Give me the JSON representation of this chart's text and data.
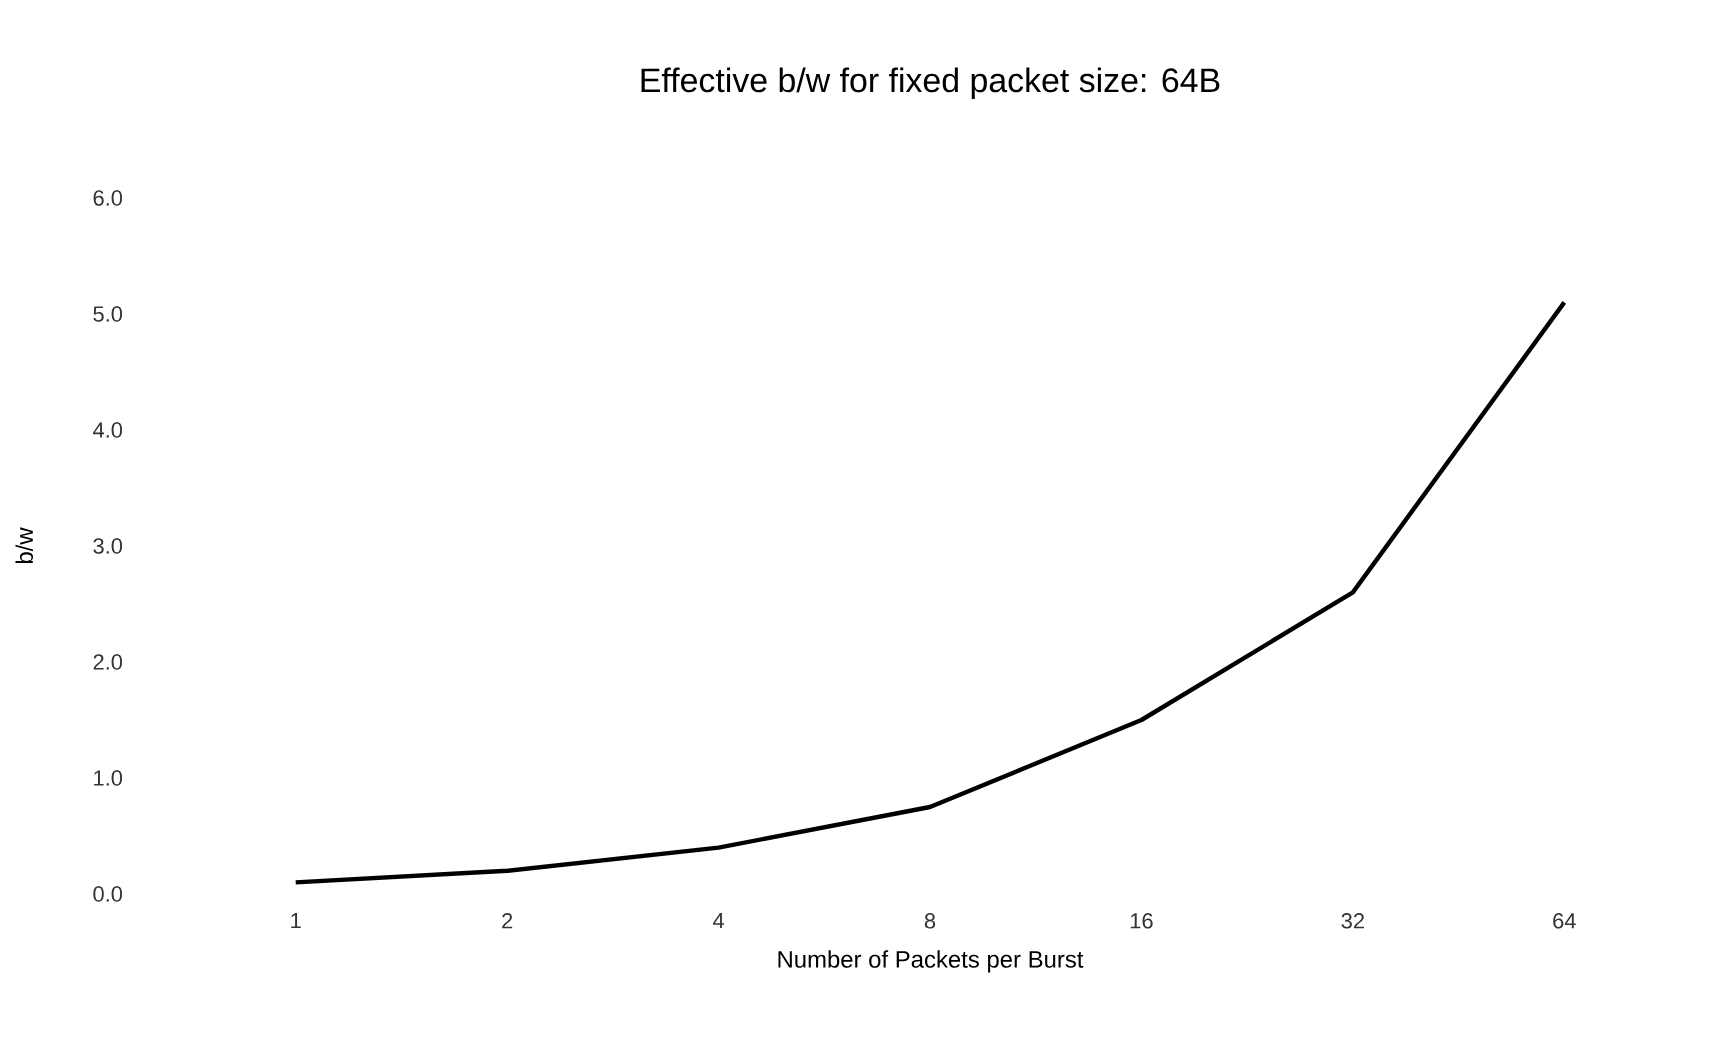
{
  "chart_data": {
    "type": "line",
    "title": "Effective b/w for fixed packet size: 64B",
    "xlabel": "Number of Packets per Burst",
    "ylabel": "b/w",
    "categories": [
      "1",
      "2",
      "4",
      "8",
      "16",
      "32",
      "64"
    ],
    "series": [
      {
        "color": "#000000",
        "values": [
          0.1,
          0.2,
          0.4,
          0.75,
          1.5,
          2.6,
          5.1
        ]
      }
    ],
    "ylim": [
      0,
      6
    ],
    "yticks": [
      {
        "value": 0,
        "label": "0.0"
      },
      {
        "value": 1,
        "label": "1.0"
      },
      {
        "value": 2,
        "label": "2.0"
      },
      {
        "value": 3,
        "label": "3.0"
      },
      {
        "value": 4,
        "label": "4.0"
      },
      {
        "value": 5,
        "label": "5.0"
      },
      {
        "value": 6,
        "label": "6.0"
      }
    ],
    "marker": "none",
    "line_style": "solid"
  }
}
